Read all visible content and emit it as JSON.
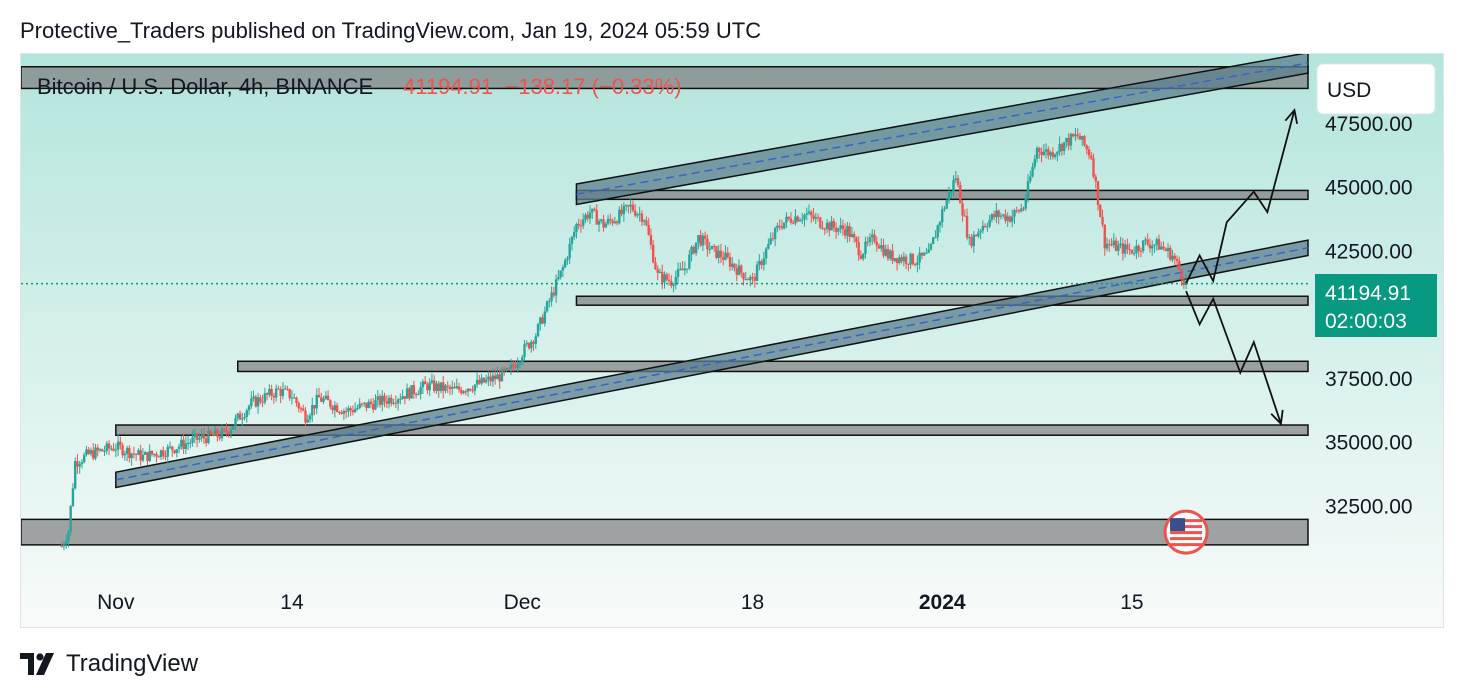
{
  "header": {
    "text": "Protective_Traders published on TradingView.com, Jan 19, 2024 05:59 UTC"
  },
  "footer": {
    "brand": "TradingView"
  },
  "chart_data": {
    "type": "candlestick",
    "symbol_line": "Bitcoin / U.S. Dollar, 4h, BINANCE",
    "quote": {
      "last": "41194.91",
      "change": "−138.17",
      "change_pct": "(−0.33%)"
    },
    "currency_button": "USD",
    "price_label": {
      "price": "41194.91",
      "countdown": "02:00:03",
      "value": 41194.91
    },
    "y_axis": {
      "ticks": [
        32500,
        35000,
        37500,
        42500,
        45000,
        47500
      ],
      "tick_labels": [
        "32500.00",
        "35000.00",
        "37500.00",
        "42500.00",
        "45000.00",
        "47500.00"
      ],
      "range": [
        30200,
        50200
      ]
    },
    "x_axis": {
      "range": [
        "2023-10-25",
        "2024-01-28"
      ],
      "ticks": [
        {
          "date": "2023-11-01",
          "label": "Nov",
          "bold": false
        },
        {
          "date": "2023-11-14",
          "label": "14",
          "bold": false
        },
        {
          "date": "2023-12-01",
          "label": "Dec",
          "bold": false
        },
        {
          "date": "2023-12-18",
          "label": "18",
          "bold": false
        },
        {
          "date": "2024-01-01",
          "label": "2024",
          "bold": true
        },
        {
          "date": "2024-01-15",
          "label": "15",
          "bold": false
        }
      ]
    },
    "close_path": [
      [
        "2023-10-28",
        30900
      ],
      [
        "2023-10-28T12:00",
        31500
      ],
      [
        "2023-10-29",
        34200
      ],
      [
        "2023-10-30",
        34500
      ],
      [
        "2023-11-01",
        34800
      ],
      [
        "2023-11-03",
        34400
      ],
      [
        "2023-11-05",
        34700
      ],
      [
        "2023-11-07",
        35100
      ],
      [
        "2023-11-09",
        35300
      ],
      [
        "2023-11-11",
        36500
      ],
      [
        "2023-11-13",
        37000
      ],
      [
        "2023-11-14",
        36800
      ],
      [
        "2023-11-15",
        36000
      ],
      [
        "2023-11-16",
        36700
      ],
      [
        "2023-11-18",
        36200
      ],
      [
        "2023-11-20",
        36500
      ],
      [
        "2023-11-22",
        36800
      ],
      [
        "2023-11-24",
        37200
      ],
      [
        "2023-11-26",
        37000
      ],
      [
        "2023-11-28",
        37300
      ],
      [
        "2023-11-30",
        37700
      ],
      [
        "2023-12-01",
        38500
      ],
      [
        "2023-12-02",
        39200
      ],
      [
        "2023-12-03",
        40500
      ],
      [
        "2023-12-04",
        41800
      ],
      [
        "2023-12-05",
        43500
      ],
      [
        "2023-12-06",
        44000
      ],
      [
        "2023-12-07",
        43500
      ],
      [
        "2023-12-08",
        43800
      ],
      [
        "2023-12-09",
        44200
      ],
      [
        "2023-12-10",
        43800
      ],
      [
        "2023-12-11",
        41500
      ],
      [
        "2023-12-12",
        41300
      ],
      [
        "2023-12-13",
        41800
      ],
      [
        "2023-12-14",
        43000
      ],
      [
        "2023-12-15",
        42500
      ],
      [
        "2023-12-16",
        42200
      ],
      [
        "2023-12-17",
        41700
      ],
      [
        "2023-12-18",
        41300
      ],
      [
        "2023-12-19",
        42500
      ],
      [
        "2023-12-20",
        43500
      ],
      [
        "2023-12-21",
        43800
      ],
      [
        "2023-12-22",
        43900
      ],
      [
        "2023-12-23",
        43600
      ],
      [
        "2023-12-24",
        43400
      ],
      [
        "2023-12-25",
        43300
      ],
      [
        "2023-12-26",
        42400
      ],
      [
        "2023-12-27",
        43000
      ],
      [
        "2023-12-28",
        42300
      ],
      [
        "2023-12-29",
        42200
      ],
      [
        "2023-12-30",
        42100
      ],
      [
        "2023-12-31",
        42300
      ],
      [
        "2024-01-01",
        44000
      ],
      [
        "2024-01-02",
        45400
      ],
      [
        "2024-01-03",
        42800
      ],
      [
        "2024-01-04",
        43500
      ],
      [
        "2024-01-05",
        43900
      ],
      [
        "2024-01-06",
        43800
      ],
      [
        "2024-01-07",
        44200
      ],
      [
        "2024-01-08",
        46500
      ],
      [
        "2024-01-09",
        46300
      ],
      [
        "2024-01-10",
        46700
      ],
      [
        "2024-01-11",
        47000
      ],
      [
        "2024-01-12",
        46200
      ],
      [
        "2024-01-13",
        42800
      ],
      [
        "2024-01-14",
        42600
      ],
      [
        "2024-01-15",
        42500
      ],
      [
        "2024-01-16",
        42800
      ],
      [
        "2024-01-17",
        42700
      ],
      [
        "2024-01-18",
        42300
      ],
      [
        "2024-01-19",
        41195
      ]
    ],
    "zones": [
      {
        "from": "2023-10-25",
        "top": 49700,
        "bottom": 48850
      },
      {
        "from": "2023-12-05",
        "top": 44850,
        "bottom": 44500
      },
      {
        "from": "2023-12-05",
        "top": 40700,
        "bottom": 40350
      },
      {
        "from": "2023-11-10",
        "top": 38150,
        "bottom": 37750
      },
      {
        "from": "2023-11-01",
        "top": 35650,
        "bottom": 35250
      },
      {
        "from": "2023-10-25",
        "top": 31950,
        "bottom": 30950
      }
    ],
    "channel_lines": [
      {
        "from": [
          "2023-12-05",
          44700
        ],
        "to": [
          "2024-01-28",
          49850
        ],
        "width": 800
      },
      {
        "from": [
          "2023-11-01",
          33500
        ],
        "to": [
          "2024-01-28",
          42600
        ],
        "width": 600
      }
    ],
    "arrows": [
      {
        "points": [
          [
            "2024-01-19",
            41200
          ],
          [
            "2024-01-20",
            42300
          ],
          [
            "2024-01-21",
            41300
          ],
          [
            "2024-01-22",
            43600
          ],
          [
            "2024-01-24",
            44800
          ],
          [
            "2024-01-25",
            44000
          ],
          [
            "2024-01-27",
            48000
          ]
        ]
      },
      {
        "points": [
          [
            "2024-01-19",
            40900
          ],
          [
            "2024-01-20",
            39600
          ],
          [
            "2024-01-21",
            40600
          ],
          [
            "2024-01-23",
            37700
          ],
          [
            "2024-01-24",
            38900
          ],
          [
            "2024-01-26",
            35700
          ]
        ]
      }
    ],
    "flag_date": "2024-01-19",
    "colors": {
      "up": "#26a69a",
      "down": "#ef5350",
      "zone": "#7d7e80",
      "channel": "#5b7f8e",
      "dashed": "#3a63c9",
      "bg_top": "#b3e5dc",
      "bg_bottom": "#f8fbfa",
      "axis_label_bg": "#089981"
    }
  }
}
